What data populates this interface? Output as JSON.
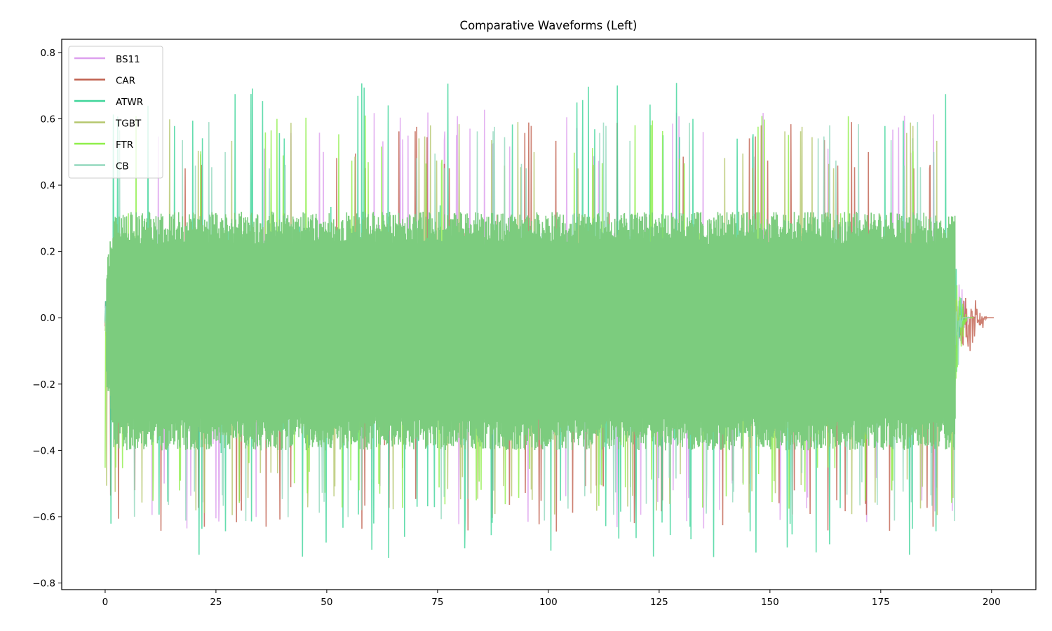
{
  "chart_data": {
    "type": "line",
    "title": "Comparative Waveforms (Left)",
    "xlabel": "",
    "ylabel": "",
    "xlim": [
      -9.8,
      210
    ],
    "ylim": [
      -0.82,
      0.84
    ],
    "xticks": [
      0,
      25,
      50,
      75,
      100,
      125,
      150,
      175,
      200
    ],
    "xtick_labels": [
      "0",
      "25",
      "50",
      "75",
      "100",
      "125",
      "150",
      "175",
      "200"
    ],
    "yticks": [
      0.8,
      0.6,
      0.4,
      0.2,
      0.0,
      -0.2,
      -0.4,
      -0.6,
      -0.8
    ],
    "ytick_labels": [
      "0.8",
      "0.6",
      "0.4",
      "0.2",
      "0.0",
      "−0.2",
      "−0.4",
      "−0.6",
      "−0.8"
    ],
    "grid": false,
    "legend_position": "upper left",
    "series": [
      {
        "name": "BS11",
        "color": "#dda0ee",
        "alpha": 0.8,
        "start": 0,
        "end": 196.5,
        "peak_pos": 0.63,
        "peak_neg": -0.64,
        "typical_amp": 0.3
      },
      {
        "name": "CAR",
        "color": "#c0604f",
        "alpha": 0.8,
        "start": 0,
        "end": 200.5,
        "peak_pos": 0.6,
        "peak_neg": -0.65,
        "typical_amp": 0.3
      },
      {
        "name": "ATWR",
        "color": "#3fd59a",
        "alpha": 0.8,
        "start": 0,
        "end": 195.5,
        "peak_pos": 0.72,
        "peak_neg": -0.73,
        "typical_amp": 0.32
      },
      {
        "name": "TGBT",
        "color": "#b5c76e",
        "alpha": 0.8,
        "start": 0,
        "end": 194.0,
        "peak_pos": 0.6,
        "peak_neg": -0.6,
        "typical_amp": 0.3
      },
      {
        "name": "FTR",
        "color": "#8fef4a",
        "alpha": 0.8,
        "start": 0,
        "end": 196.0,
        "peak_pos": 0.62,
        "peak_neg": -0.58,
        "typical_amp": 0.3
      },
      {
        "name": "CB",
        "color": "#93d8be",
        "alpha": 0.8,
        "start": 0,
        "end": 195.0,
        "peak_pos": 0.6,
        "peak_neg": -0.62,
        "typical_amp": 0.3
      }
    ]
  }
}
